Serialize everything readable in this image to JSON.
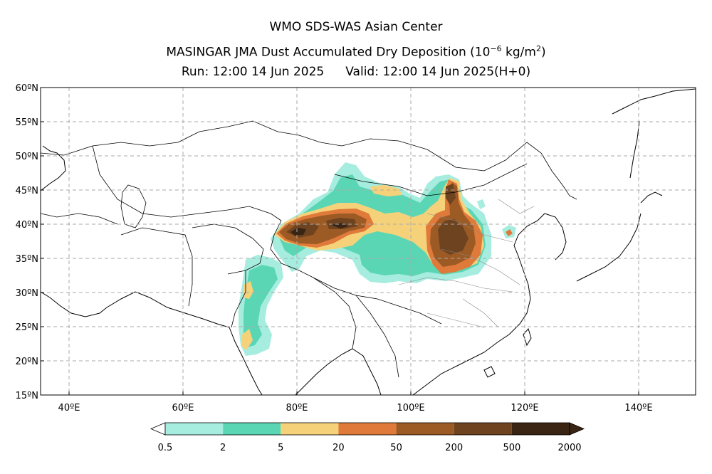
{
  "title": {
    "line1": "WMO SDS-WAS Asian Center",
    "line2_prefix": "MASINGAR JMA Dust Accumulated Dry Deposition (10",
    "line2_exp": "−6",
    "line2_unit": " kg/m",
    "line2_unit_exp": "2",
    "line2_suffix": ")",
    "run": "Run: 12:00 14 Jun 2025",
    "valid": "Valid: 12:00 14 Jun 2025(H+0)"
  },
  "map": {
    "lon_range": [
      35,
      150
    ],
    "lat_range": [
      15,
      60
    ],
    "lat_ticks": [
      {
        "value": 60,
        "label": "60ºN"
      },
      {
        "value": 55,
        "label": "55ºN"
      },
      {
        "value": 50,
        "label": "50ºN"
      },
      {
        "value": 45,
        "label": "45ºN"
      },
      {
        "value": 40,
        "label": "40ºN"
      },
      {
        "value": 35,
        "label": "35ºN"
      },
      {
        "value": 30,
        "label": "30ºN"
      },
      {
        "value": 25,
        "label": "25ºN"
      },
      {
        "value": 20,
        "label": "20ºN"
      },
      {
        "value": 15,
        "label": "15ºN"
      }
    ],
    "lon_ticks": [
      {
        "value": 40,
        "label": "40ºE"
      },
      {
        "value": 60,
        "label": "60ºE"
      },
      {
        "value": 80,
        "label": "80ºE"
      },
      {
        "value": 100,
        "label": "100ºE"
      },
      {
        "value": 120,
        "label": "120ºE"
      },
      {
        "value": 140,
        "label": "140ºE"
      }
    ],
    "grid": true
  },
  "colorbar": {
    "levels": [
      "0.5",
      "2",
      "5",
      "20",
      "50",
      "200",
      "500",
      "2000"
    ],
    "colors": [
      "#a6ede0",
      "#5ad6b4",
      "#f5d27a",
      "#e07a3a",
      "#9c5a25",
      "#6e4320",
      "#3a2413"
    ]
  }
}
